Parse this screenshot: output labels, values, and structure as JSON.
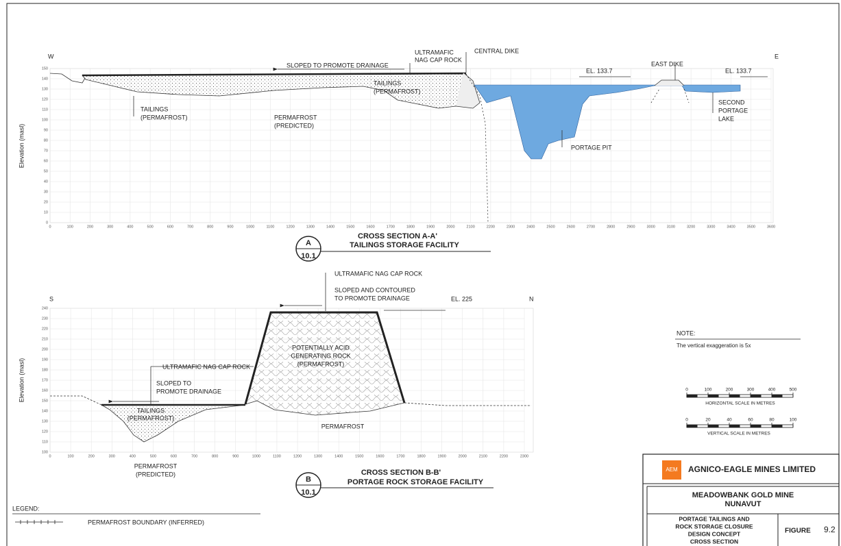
{
  "section_a": {
    "west": "W",
    "east": "E",
    "y_axis_label": "Elevation (masl)",
    "y_ticks": [
      0,
      10,
      20,
      30,
      40,
      50,
      60,
      70,
      80,
      90,
      100,
      110,
      120,
      130,
      140,
      150
    ],
    "x_ticks": [
      0,
      100,
      200,
      300,
      400,
      500,
      600,
      700,
      800,
      900,
      1000,
      1100,
      1200,
      1300,
      1400,
      1500,
      1600,
      1700,
      1800,
      1900,
      2000,
      2100,
      2200,
      2300,
      2400,
      2500,
      2600,
      2700,
      2800,
      2900,
      3000,
      3100,
      3200,
      3300,
      3400,
      3500,
      3600
    ],
    "labels": {
      "sloped": "SLOPED TO PROMOTE DRAINAGE",
      "cap_rock": [
        "ULTRAMAFIC",
        "NAG CAP ROCK"
      ],
      "central_dike": "CENTRAL DIKE",
      "el_west": "EL. 133.7",
      "east_dike": "EAST DIKE",
      "el_east": "EL. 133.7",
      "tailings_outer": [
        "TAILINGS",
        "(PERMAFROST)"
      ],
      "tailings_inner": [
        "TAILINGS",
        "(PERMAFROST)"
      ],
      "permafrost": [
        "PERMAFROST",
        "(PREDICTED)"
      ],
      "portage_pit": "PORTAGE PIT",
      "lake": [
        "SECOND",
        "PORTAGE",
        "LAKE"
      ]
    },
    "title": "CROSS SECTION A-A'",
    "subtitle": "TAILINGS STORAGE FACILITY",
    "callout": {
      "letter": "A",
      "ref": "10.1"
    }
  },
  "section_b": {
    "south": "S",
    "north": "N",
    "y_axis_label": "Elevation (masl)",
    "y_ticks": [
      100,
      110,
      120,
      130,
      140,
      150,
      160,
      170,
      180,
      190,
      200,
      210,
      220,
      230,
      240
    ],
    "x_ticks": [
      0,
      100,
      200,
      300,
      400,
      500,
      600,
      700,
      800,
      900,
      1000,
      1100,
      1200,
      1300,
      1400,
      1500,
      1600,
      1700,
      1800,
      1900,
      2000,
      2100,
      2200,
      2300
    ],
    "labels": {
      "cap_rock_top": "ULTRAMAFIC NAG CAP ROCK",
      "sloped_contoured": [
        "SLOPED AND CONTOURED",
        "TO PROMOTE DRAINAGE"
      ],
      "el": "EL. 225",
      "pag_rock": [
        "POTENTIALLY ACID",
        "GENERATING ROCK",
        "(PERMAFROST)"
      ],
      "cap_rock_side": "ULTRAMAFIC NAG CAP ROCK",
      "sloped": [
        "SLOPED TO",
        "PROMOTE DRAINAGE"
      ],
      "tailings": [
        "TAILINGS",
        "(PERMAFROST)"
      ],
      "permafrost": "PERMAFROST",
      "permafrost_predicted": [
        "PERMAFROST",
        "(PREDICTED)"
      ]
    },
    "title": "CROSS SECTION B-B'",
    "subtitle": "PORTAGE ROCK STORAGE FACILITY",
    "callout": {
      "letter": "B",
      "ref": "10.1"
    }
  },
  "note": {
    "heading": "NOTE:",
    "text": "The vertical exaggeration is 5x"
  },
  "scales": {
    "horizontal": {
      "ticks": [
        0,
        100,
        200,
        300,
        400,
        500
      ],
      "label": "HORIZONTAL SCALE IN METRES"
    },
    "vertical": {
      "ticks": [
        0,
        20,
        40,
        60,
        80,
        100
      ],
      "label": "VERTICAL SCALE IN METRES"
    }
  },
  "legend": {
    "heading": "LEGEND:",
    "items": [
      "PERMAFROST BOUNDARY (INFERRED)"
    ]
  },
  "title_block": {
    "logo": "AEM",
    "company": "AGNICO-EAGLE MINES LIMITED",
    "project": [
      "MEADOWBANK GOLD MINE",
      "NUNAVUT"
    ],
    "drawing": [
      "PORTAGE TAILINGS AND",
      "ROCK STORAGE CLOSURE",
      "DESIGN CONCEPT",
      "CROSS SECTION"
    ],
    "figure_label": "FIGURE",
    "figure_number": "9.2"
  }
}
